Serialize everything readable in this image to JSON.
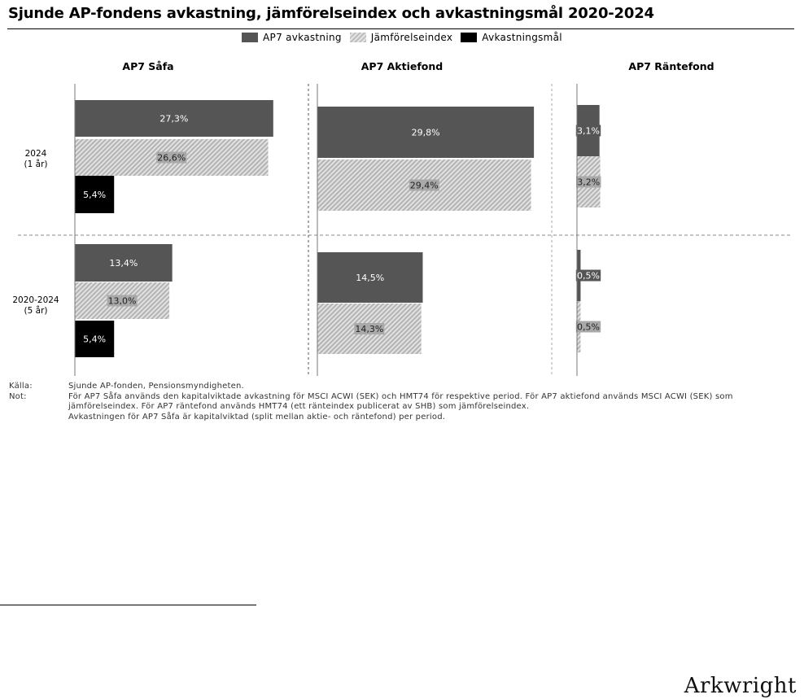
{
  "title": "Sjunde AP-fondens avkastning, jämförelseindex och avkastningsmål 2020-2024",
  "legend": [
    {
      "label": "AP7 avkastning",
      "pattern": "solid",
      "color": "#555555"
    },
    {
      "label": "Jämförelseindex",
      "pattern": "hatched",
      "color": "#bbbbbb"
    },
    {
      "label": "Avkastningsmål",
      "pattern": "solid",
      "color": "#000000"
    }
  ],
  "chart_data": {
    "type": "bar",
    "orientation": "horizontal",
    "panels": [
      "AP7 Såfa",
      "AP7 Aktiefond",
      "AP7 Räntefond"
    ],
    "categories": [
      "2024\n(1 år)",
      "2020-2024\n(5 år)"
    ],
    "series": [
      {
        "name": "AP7 avkastning",
        "values": [
          [
            27.3,
            13.4
          ],
          [
            29.8,
            14.5
          ],
          [
            3.1,
            0.5
          ]
        ],
        "labels": [
          [
            "27,3%",
            "13,4%"
          ],
          [
            "29,8%",
            "14,5%"
          ],
          [
            "3,1%",
            "0,5%"
          ]
        ]
      },
      {
        "name": "Jämförelseindex",
        "values": [
          [
            26.6,
            13.0
          ],
          [
            29.4,
            14.3
          ],
          [
            3.2,
            0.5
          ]
        ],
        "labels": [
          [
            "26,6%",
            "13,0%"
          ],
          [
            "29,4%",
            "14,3%"
          ],
          [
            "3,2%",
            "0,5%"
          ]
        ]
      },
      {
        "name": "Avkastningsmål",
        "values": [
          [
            5.4,
            5.4
          ],
          [
            null,
            null
          ],
          [
            null,
            null
          ]
        ],
        "labels": [
          [
            "5,4%",
            "5,4%"
          ],
          [
            null,
            null
          ],
          [
            null,
            null
          ]
        ]
      }
    ],
    "colors": {
      "AP7 avkastning": "#555555",
      "Jämförelseindex": "#bbbbbb",
      "Avkastningsmål": "#000000"
    },
    "grid": false,
    "legend_position": "top-center"
  },
  "notes": {
    "source_key": "Källa:",
    "source_text": "Sjunde AP-fonden, Pensionsmyndigheten.",
    "note_key": "Not:",
    "note_lines": [
      "För AP7 Såfa används den kapitalviktade avkastning för MSCI ACWI (SEK) och HMT74 för respektive period. För AP7 aktiefond används MSCI ACWI (SEK) som",
      "jämförelseindex. För AP7 räntefond används HMT74 (ett ränteindex publicerat av SHB) som jämförelseindex.",
      "Avkastningen för AP7 Såfa är kapitalviktad (split mellan aktie- och räntefond) per period."
    ]
  },
  "brand": "Arkwright"
}
